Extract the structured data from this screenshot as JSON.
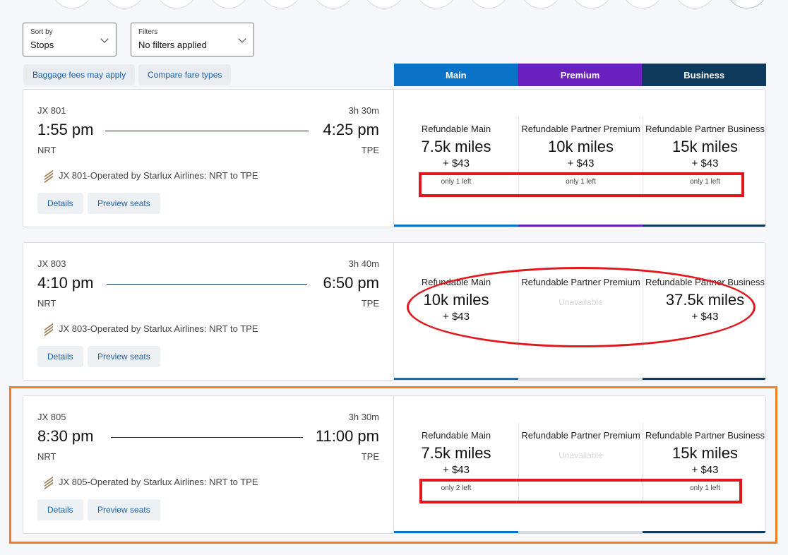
{
  "date_strip": {
    "count": 14
  },
  "controls": {
    "sort_label": "Sort by",
    "sort_value": "Stops",
    "filters_label": "Filters",
    "filters_value": "No filters applied",
    "baggage_link": "Baggage fees may apply",
    "compare_link": "Compare fare types"
  },
  "cabin_tabs": [
    {
      "label": "Main",
      "color": "#0a72c7"
    },
    {
      "label": "Premium",
      "color": "#6a1fbf"
    },
    {
      "label": "Business",
      "color": "#0e3a5e"
    }
  ],
  "flights": [
    {
      "flight_number": "JX 801",
      "duration": "3h 30m",
      "depart_time": "1:55 pm",
      "arrive_time": "4:25 pm",
      "origin": "NRT",
      "destination": "TPE",
      "operated_by": "JX 801-Operated by Starlux Airlines: NRT to TPE",
      "details_label": "Details",
      "preview_label": "Preview seats",
      "fares": [
        {
          "name": "Refundable Main",
          "miles": "7.5k miles",
          "tax": "+ $43",
          "availability": "only 1 left",
          "unavailable_text": ""
        },
        {
          "name": "Refundable Partner Premium",
          "miles": "10k miles",
          "tax": "+ $43",
          "availability": "only 1 left",
          "unavailable_text": ""
        },
        {
          "name": "Refundable Partner Business",
          "miles": "15k miles",
          "tax": "+ $43",
          "availability": "only 1 left",
          "unavailable_text": ""
        }
      ]
    },
    {
      "flight_number": "JX 803",
      "duration": "3h 40m",
      "depart_time": "4:10 pm",
      "arrive_time": "6:50 pm",
      "origin": "NRT",
      "destination": "TPE",
      "operated_by": "JX 803-Operated by Starlux Airlines: NRT to TPE",
      "details_label": "Details",
      "preview_label": "Preview seats",
      "fares": [
        {
          "name": "Refundable Main",
          "miles": "10k miles",
          "tax": "+ $43",
          "availability": "",
          "unavailable_text": ""
        },
        {
          "name": "Refundable Partner Premium",
          "miles": "",
          "tax": "",
          "availability": "",
          "unavailable_text": "Unavailable"
        },
        {
          "name": "Refundable Partner Business",
          "miles": "37.5k miles",
          "tax": "+ $43",
          "availability": "",
          "unavailable_text": ""
        }
      ]
    },
    {
      "flight_number": "JX 805",
      "duration": "3h 30m",
      "depart_time": "8:30 pm",
      "arrive_time": "11:00 pm",
      "origin": "NRT",
      "destination": "TPE",
      "operated_by": "JX 805-Operated by Starlux Airlines: NRT to TPE",
      "details_label": "Details",
      "preview_label": "Preview seats",
      "fares": [
        {
          "name": "Refundable Main",
          "miles": "7.5k miles",
          "tax": "+ $43",
          "availability": "only 2 left",
          "unavailable_text": ""
        },
        {
          "name": "Refundable Partner Premium",
          "miles": "",
          "tax": "",
          "availability": "",
          "unavailable_text": "Unavailable"
        },
        {
          "name": "Refundable Partner Business",
          "miles": "15k miles",
          "tax": "+ $43",
          "availability": "only 1 left",
          "unavailable_text": ""
        }
      ]
    }
  ],
  "annotation_colors": {
    "red": "#e0171d",
    "orange": "#f07f24"
  },
  "bar_colors": {
    "main": "#0a72c7",
    "premium": "#6a1fbf",
    "business": "#0e3a5e",
    "disabled": "#d9dcdf"
  }
}
